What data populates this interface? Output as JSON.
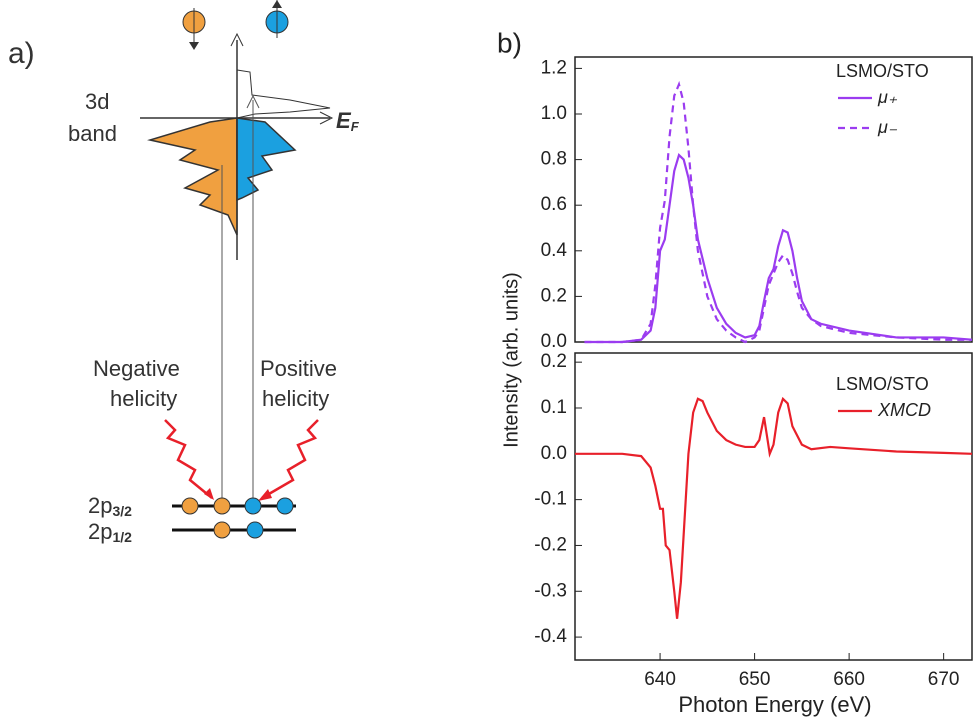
{
  "diagram": {
    "panel_label": "a)",
    "band_label": [
      "3d",
      "band"
    ],
    "fermi_label": {
      "main": "E",
      "sub": "F"
    },
    "negative_label": [
      "Negative",
      "helicity"
    ],
    "positive_label": [
      "Positive",
      "helicity"
    ],
    "levels": [
      {
        "main": "2p",
        "sub": "3/2"
      },
      {
        "main": "2p",
        "sub": "1/2"
      }
    ]
  },
  "panel_label": "b)",
  "chart_data": [
    {
      "type": "line",
      "ylabel": "Intensity (arb. units)",
      "legend_title": "LSMO/STO",
      "xlim": [
        631,
        673
      ],
      "ylim": [
        0,
        1.25
      ],
      "yticks": [
        {
          "value": 0,
          "label": "0.0"
        },
        0.2,
        0.4,
        0.6,
        0.8,
        {
          "value": 1,
          "label": "1.0"
        },
        1.2
      ],
      "x": [
        632,
        636,
        638,
        639,
        639.5,
        640,
        640.5,
        641,
        641.5,
        642,
        642.5,
        643,
        643.5,
        644,
        645,
        646,
        647,
        648,
        649,
        650,
        650.5,
        651,
        651.5,
        652,
        652.5,
        653,
        653.5,
        654,
        654.5,
        655,
        656,
        657,
        660,
        665,
        670,
        673
      ],
      "series": [
        {
          "name": "μ₊",
          "color": "#9b3cf0",
          "linestyle": "solid",
          "values": [
            0,
            0,
            0.01,
            0.05,
            0.15,
            0.4,
            0.45,
            0.6,
            0.75,
            0.82,
            0.8,
            0.72,
            0.6,
            0.45,
            0.28,
            0.15,
            0.08,
            0.04,
            0.02,
            0.03,
            0.07,
            0.18,
            0.28,
            0.32,
            0.42,
            0.49,
            0.48,
            0.4,
            0.28,
            0.18,
            0.1,
            0.08,
            0.05,
            0.02,
            0.02,
            0.01
          ]
        },
        {
          "name": "μ₋",
          "color": "#9b3cf0",
          "linestyle": "dashed",
          "values": [
            0,
            0,
            0.01,
            0.08,
            0.25,
            0.5,
            0.62,
            0.9,
            1.08,
            1.13,
            1.05,
            0.85,
            0.6,
            0.4,
            0.2,
            0.1,
            0.05,
            0.02,
            0,
            0.02,
            0.05,
            0.15,
            0.25,
            0.3,
            0.35,
            0.38,
            0.36,
            0.3,
            0.22,
            0.15,
            0.1,
            0.07,
            0.04,
            0.02,
            0.01,
            0.01
          ]
        }
      ]
    },
    {
      "type": "line",
      "xlabel": "Photon Energy (eV)",
      "legend_title": "LSMO/STO",
      "xlim": [
        631,
        673
      ],
      "ylim": [
        -0.45,
        0.22
      ],
      "xticks": [
        640,
        650,
        660,
        670
      ],
      "yticks": [
        -0.4,
        -0.3,
        -0.2,
        -0.1,
        {
          "value": 0,
          "label": "0.0"
        },
        0.1,
        0.2
      ],
      "x": [
        631,
        636,
        638,
        639,
        639.5,
        640,
        640.3,
        640.6,
        641,
        641.5,
        641.8,
        642.2,
        643,
        643.5,
        644,
        644.5,
        645,
        646,
        647,
        648,
        649,
        650,
        650.5,
        651,
        651.3,
        651.6,
        652,
        652.5,
        653,
        653.5,
        654,
        655,
        656,
        658,
        660,
        665,
        670,
        673
      ],
      "series": [
        {
          "name": "XMCD",
          "color": "#e8202a",
          "linestyle": "solid",
          "values": [
            0,
            0,
            -0.005,
            -0.03,
            -0.07,
            -0.12,
            -0.12,
            -0.2,
            -0.21,
            -0.3,
            -0.36,
            -0.28,
            0,
            0.09,
            0.12,
            0.115,
            0.09,
            0.05,
            0.03,
            0.02,
            0.015,
            0.015,
            0.03,
            0.08,
            0.04,
            0,
            0.02,
            0.09,
            0.12,
            0.11,
            0.06,
            0.02,
            0.01,
            0.015,
            0.012,
            0.005,
            0.002,
            0
          ]
        }
      ]
    }
  ]
}
